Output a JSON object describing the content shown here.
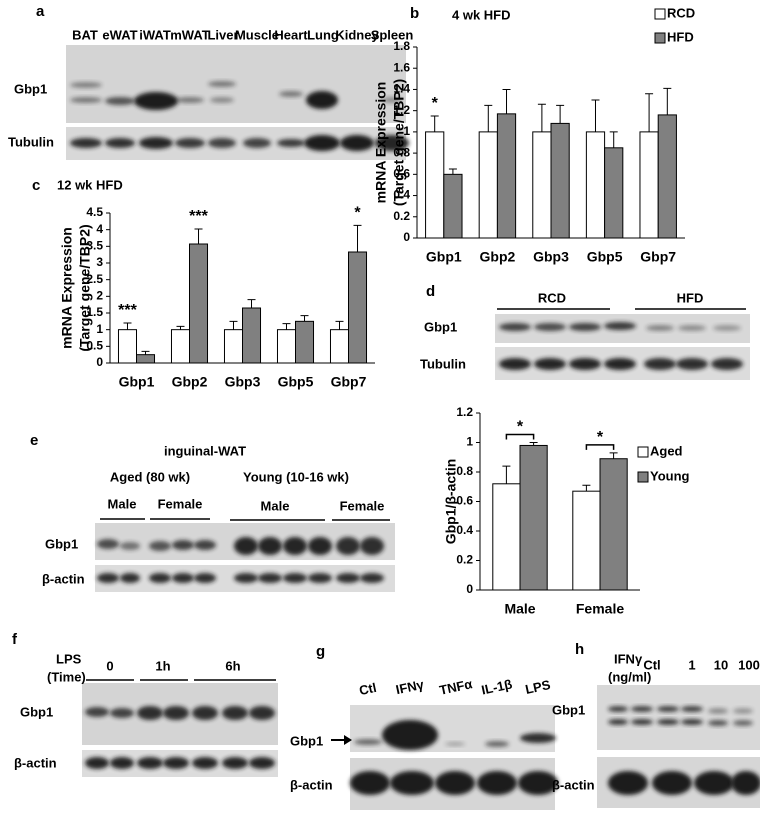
{
  "chart_data": [
    {
      "type": "bar",
      "panel_label": "b",
      "title": "4 wk HFD",
      "y_label": [
        "mRNA Expression",
        "(Target gene/TBP2)"
      ],
      "categories": [
        "Gbp1",
        "Gbp2",
        "Gbp3",
        "Gbp5",
        "Gbp7"
      ],
      "series": [
        {
          "name": "RCD",
          "color": "#ffffff",
          "values": [
            1,
            1,
            1,
            1,
            1
          ],
          "errors": [
            0.15,
            0.25,
            0.26,
            0.3,
            0.36
          ]
        },
        {
          "name": "HFD",
          "color": "#808080",
          "values": [
            0.6,
            1.17,
            1.08,
            0.85,
            1.16
          ],
          "errors": [
            0.05,
            0.23,
            0.17,
            0.15,
            0.25
          ]
        }
      ],
      "annotations": [
        "*",
        null,
        null,
        null,
        null
      ],
      "ylim": [
        0,
        1.8
      ],
      "yticks": [
        0,
        0.2,
        0.4,
        0.6,
        0.8,
        1,
        1.2,
        1.4,
        1.6,
        1.8
      ],
      "legend": "top-right"
    },
    {
      "type": "bar",
      "panel_label": "c",
      "title": "12 wk HFD",
      "y_label": [
        "mRNA Expression",
        "(Target gene/TBP2)"
      ],
      "categories": [
        "Gbp1",
        "Gbp2",
        "Gbp3",
        "Gbp5",
        "Gbp7"
      ],
      "series": [
        {
          "color": "#ffffff",
          "values": [
            1,
            1,
            1,
            1,
            1
          ],
          "errors": [
            0.2,
            0.1,
            0.25,
            0.18,
            0.25
          ]
        },
        {
          "color": "#808080",
          "values": [
            0.25,
            3.57,
            1.65,
            1.25,
            3.33
          ],
          "errors": [
            0.1,
            0.45,
            0.25,
            0.17,
            0.8
          ]
        }
      ],
      "annotations": [
        "***",
        "***",
        null,
        null,
        "*"
      ],
      "ylim": [
        0,
        4.5
      ],
      "yticks": [
        0,
        0.5,
        1,
        1.5,
        2,
        2.5,
        3,
        3.5,
        4,
        4.5
      ]
    },
    {
      "type": "bar",
      "y_label": [
        "Gbp1/β-actin"
      ],
      "categories": [
        "Male",
        "Female"
      ],
      "series": [
        {
          "name": "Aged",
          "color": "#ffffff",
          "values": [
            0.72,
            0.67
          ],
          "errors": [
            0.12,
            0.04
          ]
        },
        {
          "name": "Young",
          "color": "#808080",
          "values": [
            0.98,
            0.89
          ],
          "errors": [
            0.02,
            0.04
          ]
        }
      ],
      "annotations": [
        "*",
        "*"
      ],
      "ylim": [
        0,
        1.2
      ],
      "yticks": [
        0,
        0.2,
        0.4,
        0.6,
        0.8,
        1,
        1.2
      ],
      "legend": "right"
    }
  ],
  "blots": {
    "a": {
      "panel_label": "a",
      "lanes": [
        "BAT",
        "eWAT",
        "iWAT",
        "mWAT",
        "Liver",
        "Muscle",
        "Heart",
        "Lung",
        "Kidney",
        "Spleen"
      ],
      "rows": [
        "Gbp1",
        "Tubulin"
      ]
    },
    "d": {
      "panel_label": "d",
      "groups": [
        "RCD",
        "HFD"
      ],
      "rows": [
        "Gbp1",
        "Tubulin"
      ]
    },
    "e": {
      "panel_label": "e",
      "title": "inguinal-WAT",
      "groups": [
        "Aged (80 wk)",
        "Young (10-16 wk)"
      ],
      "subgroups": [
        "Male",
        "Female",
        "Male",
        "Female"
      ],
      "rows": [
        "Gbp1",
        "β-actin"
      ]
    },
    "f": {
      "panel_label": "f",
      "condition": [
        "LPS",
        "(Time)"
      ],
      "lanes": [
        "0",
        "1h",
        "6h"
      ],
      "rows": [
        "Gbp1",
        "β-actin"
      ]
    },
    "g": {
      "panel_label": "g",
      "lanes": [
        "Ctl",
        "IFNγ",
        "TNFα",
        "IL-1β",
        "LPS"
      ],
      "rows": [
        "Gbp1",
        "β-actin"
      ]
    },
    "h": {
      "panel_label": "h",
      "condition": [
        "IFNγ",
        "(ng/ml)"
      ],
      "lanes": [
        "Ctl",
        "1",
        "10",
        "100"
      ],
      "rows": [
        "Gbp1",
        "β-actin"
      ]
    }
  }
}
